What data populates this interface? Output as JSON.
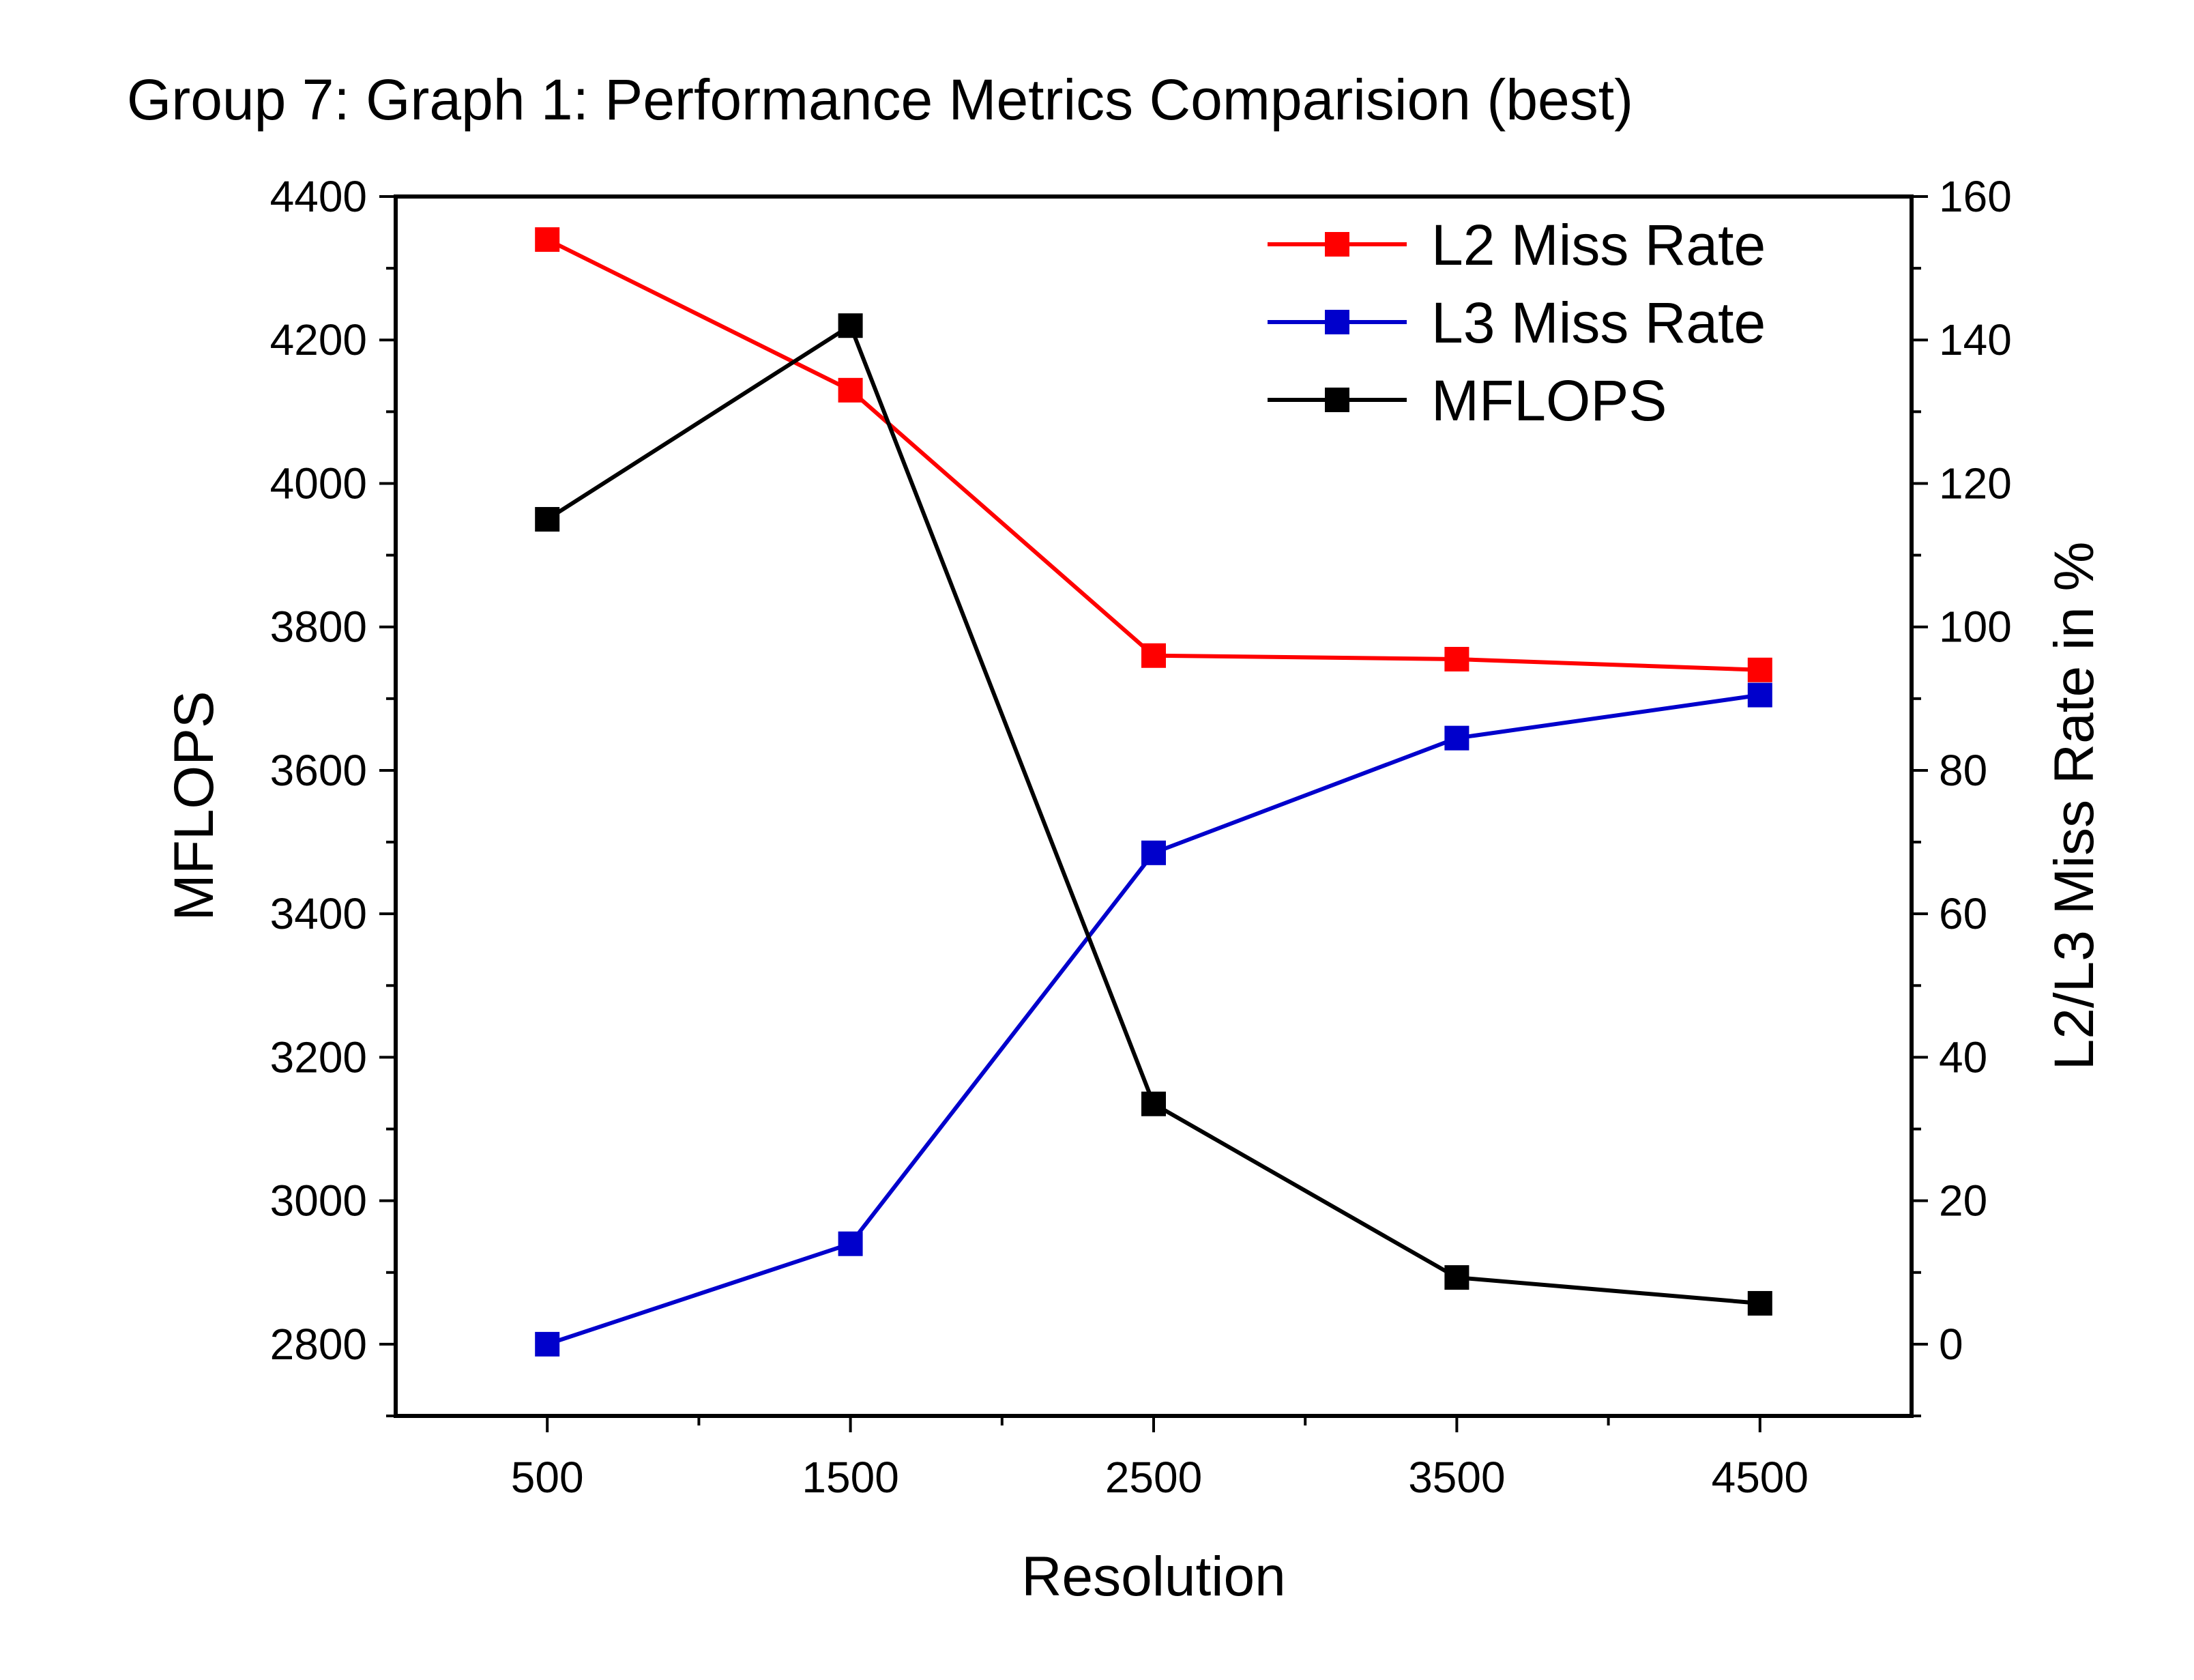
{
  "chart_data": {
    "type": "line",
    "title": "Group 7:  Graph 1: Performance Metrics Comparision (best)",
    "xlabel": "Resolution",
    "ylabel_left": "MFLOPS",
    "ylabel_right": "L2/L3 Miss Rate in %",
    "x": [
      500,
      1500,
      2500,
      3500,
      4500
    ],
    "x_ticks": [
      500,
      1500,
      2500,
      3500,
      4500
    ],
    "xlim": [
      0,
      5000
    ],
    "ylim_left": [
      2700,
      4400
    ],
    "ylim_right": [
      -10,
      160
    ],
    "left_ticks": [
      2800,
      3000,
      3200,
      3400,
      3600,
      3800,
      4000,
      4200,
      4400
    ],
    "right_ticks": [
      0,
      20,
      40,
      60,
      80,
      100,
      120,
      140,
      160
    ],
    "grid": false,
    "legend_position": "top-right",
    "series": [
      {
        "name": "L2 Miss Rate",
        "axis": "right",
        "color": "#ff0000",
        "values": [
          154,
          133,
          96,
          95.5,
          94
        ]
      },
      {
        "name": "L3 Miss Rate",
        "axis": "right",
        "color": "#0000cc",
        "values": [
          0,
          14,
          68.5,
          84.5,
          90.5
        ]
      },
      {
        "name": "MFLOPS",
        "axis": "left",
        "color": "#000000",
        "values": [
          3950,
          4220,
          3135,
          2893,
          2857
        ]
      }
    ]
  }
}
